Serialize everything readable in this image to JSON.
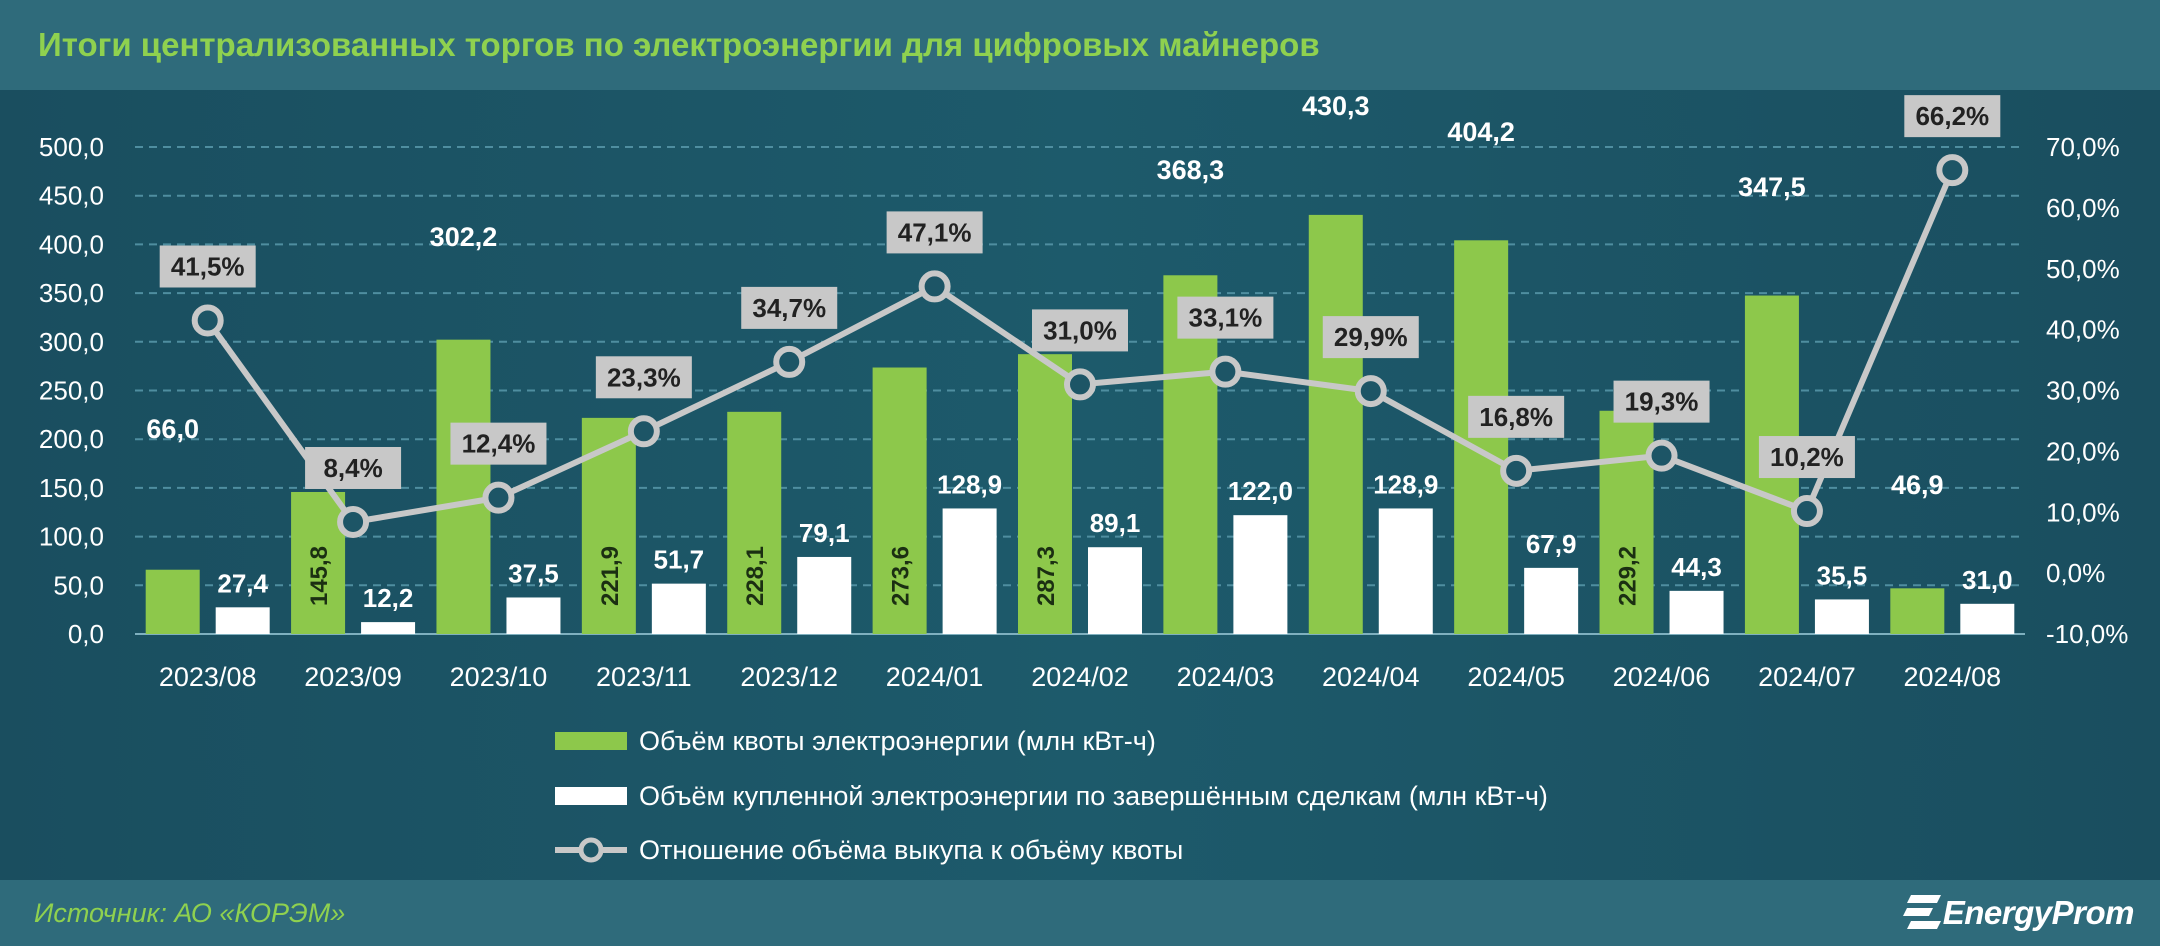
{
  "title": "Итоги централизованных торгов по электроэнергии для цифровых майнеров",
  "source": "Источник: АО «КОРЭМ»",
  "logo": {
    "text": "EnergyProm",
    "icon": "energyprom-logo-icon"
  },
  "colors": {
    "quota": "#8dc84b",
    "purchased": "#ffffff",
    "ratio": "#c8c8c8",
    "ratio_label_bg": "#c8c8c8",
    "grid": "#4f8ea0",
    "title": "#8fd14f"
  },
  "chart_data": {
    "type": "bar",
    "categories": [
      "2023/08",
      "2023/09",
      "2023/10",
      "2023/11",
      "2023/12",
      "2024/01",
      "2024/02",
      "2024/03",
      "2024/04",
      "2024/05",
      "2024/06",
      "2024/07",
      "2024/08"
    ],
    "series": [
      {
        "name": "Объём квоты электроэнергии (млн кВт-ч)",
        "type": "bar",
        "axis": "left",
        "values": [
          66.0,
          145.8,
          302.2,
          221.9,
          228.1,
          273.6,
          287.3,
          368.3,
          430.3,
          404.2,
          229.2,
          347.5,
          46.9
        ],
        "labels": [
          "66,0",
          "145,8",
          "302,2",
          "221,9",
          "228,1",
          "273,6",
          "287,3",
          "368,3",
          "430,3",
          "404,2",
          "229,2",
          "347,5",
          "46,9"
        ]
      },
      {
        "name": "Объём купленной электроэнергии по завершённым сделкам (млн кВт-ч)",
        "type": "bar",
        "axis": "left",
        "values": [
          27.4,
          12.2,
          37.5,
          51.7,
          79.1,
          128.9,
          89.1,
          122.0,
          128.9,
          67.9,
          44.3,
          35.5,
          31.0
        ],
        "labels": [
          "27,4",
          "12,2",
          "37,5",
          "51,7",
          "79,1",
          "128,9",
          "89,1",
          "122,0",
          "128,9",
          "67,9",
          "44,3",
          "35,5",
          "31,0"
        ]
      },
      {
        "name": "Отношение объёма выкупа к объёму квоты",
        "type": "line",
        "axis": "right",
        "values": [
          41.5,
          8.4,
          12.4,
          23.3,
          34.7,
          47.1,
          31.0,
          33.1,
          29.9,
          16.8,
          19.3,
          10.2,
          66.2
        ],
        "labels": [
          "41,5%",
          "8,4%",
          "12,4%",
          "23,3%",
          "34,7%",
          "47,1%",
          "31,0%",
          "33,1%",
          "29,9%",
          "16,8%",
          "19,3%",
          "10,2%",
          "66,2%"
        ]
      }
    ],
    "y_left": {
      "min": 0,
      "max": 500,
      "step": 50,
      "ticks": [
        "0,0",
        "50,0",
        "100,0",
        "150,0",
        "200,0",
        "250,0",
        "300,0",
        "350,0",
        "400,0",
        "450,0",
        "500,0"
      ]
    },
    "y_right": {
      "min": -10,
      "max": 70,
      "step": 10,
      "ticks": [
        "-10,0%",
        "0,0%",
        "10,0%",
        "20,0%",
        "30,0%",
        "40,0%",
        "50,0%",
        "60,0%",
        "70,0%"
      ]
    },
    "grid": true,
    "legend": "bottom-center"
  }
}
